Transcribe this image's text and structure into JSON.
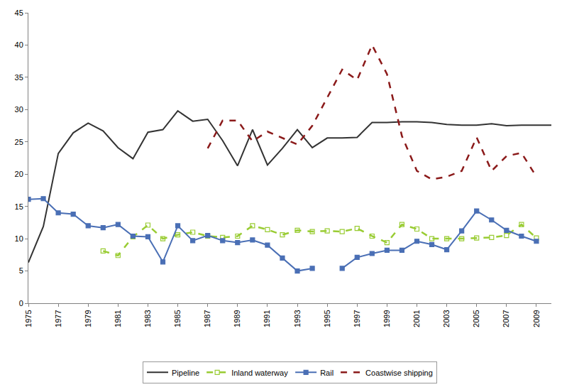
{
  "chart_data": {
    "type": "line",
    "x": [
      1975,
      1976,
      1977,
      1978,
      1979,
      1980,
      1981,
      1982,
      1983,
      1984,
      1985,
      1986,
      1987,
      1988,
      1989,
      1990,
      1991,
      1992,
      1993,
      1994,
      1995,
      1996,
      1997,
      1998,
      1999,
      2000,
      2001,
      2002,
      2003,
      2004,
      2005,
      2006,
      2007,
      2008,
      2009,
      2010
    ],
    "xlim": [
      1975,
      2010
    ],
    "xticks": [
      1975,
      1977,
      1979,
      1981,
      1983,
      1985,
      1987,
      1989,
      1991,
      1993,
      1995,
      1997,
      1999,
      2001,
      2003,
      2005,
      2007,
      2009
    ],
    "ylim": [
      0,
      45
    ],
    "yticks": [
      0,
      5,
      10,
      15,
      20,
      25,
      30,
      35,
      40,
      45
    ],
    "grid": false,
    "legend": "bottom",
    "series": [
      {
        "name": "Pipeline",
        "color": "#333333",
        "marker": "none",
        "line_style": "solid",
        "values": [
          6.3,
          11.9,
          23.2,
          26.4,
          27.9,
          26.7,
          24.1,
          22.4,
          26.5,
          26.9,
          29.8,
          28.2,
          28.5,
          25.2,
          21.3,
          26.9,
          21.4,
          24.0,
          26.9,
          24.1,
          25.6,
          25.6,
          25.7,
          28.0,
          28.0,
          28.1,
          28.1,
          28.0,
          27.7,
          27.6,
          27.6,
          27.8,
          27.5,
          27.6,
          27.6,
          27.6
        ]
      },
      {
        "name": "Inland waterway",
        "color": "#99cc33",
        "marker": "square-open",
        "line_style": "dash",
        "values": [
          null,
          null,
          null,
          null,
          null,
          8.1,
          7.4,
          10.3,
          12.1,
          10.0,
          10.6,
          11.0,
          10.4,
          10.2,
          10.4,
          12.0,
          11.4,
          10.6,
          11.3,
          11.1,
          11.2,
          11.1,
          11.6,
          10.4,
          9.4,
          12.2,
          11.5,
          10.0,
          10.0,
          10.0,
          10.1,
          10.2,
          10.5,
          12.2,
          10.1,
          null
        ]
      },
      {
        "name": "Rail",
        "color": "#4a6fb5",
        "marker": "square",
        "line_style": "solid",
        "values": [
          16.1,
          16.2,
          14.0,
          13.8,
          12.0,
          11.7,
          12.2,
          10.4,
          10.3,
          6.4,
          12.0,
          9.7,
          10.5,
          9.7,
          9.4,
          9.8,
          9.0,
          7.0,
          5.0,
          5.4,
          null,
          5.4,
          7.1,
          7.7,
          8.2,
          8.2,
          9.6,
          9.1,
          8.3,
          11.2,
          14.3,
          12.9,
          11.3,
          10.4,
          9.6,
          null
        ]
      },
      {
        "name": "Coastwise shipping",
        "color": "#8b1a1a",
        "marker": "none",
        "line_style": "dash",
        "values": [
          null,
          null,
          null,
          null,
          null,
          null,
          null,
          null,
          null,
          null,
          null,
          null,
          24.0,
          28.3,
          28.3,
          25.1,
          26.6,
          25.6,
          24.6,
          27.5,
          31.8,
          36.2,
          34.6,
          40.0,
          35.5,
          25.9,
          20.5,
          19.2,
          19.6,
          20.5,
          25.7,
          20.5,
          22.8,
          23.3,
          19.6,
          null
        ]
      }
    ]
  }
}
